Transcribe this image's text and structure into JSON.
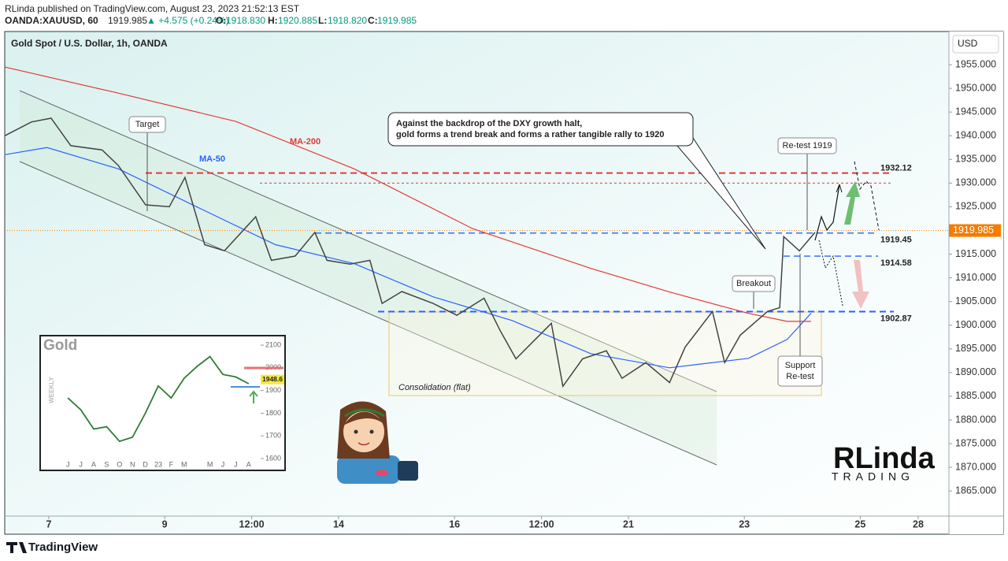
{
  "header": {
    "byline": "RLinda published on TradingView.com, August 23, 2023 21:52:13 EST",
    "symbol": "OANDA:XAUUSD, 60",
    "last": "1919.985",
    "change": "▲ +4.575 (+0.24%)",
    "ohlc": [
      [
        "O:",
        "1918.830"
      ],
      [
        "H:",
        "1920.885"
      ],
      [
        "L:",
        "1918.820"
      ],
      [
        "C:",
        "1919.985"
      ]
    ]
  },
  "footer": "TradingView",
  "logo": [
    "RLinda",
    "TRADING"
  ],
  "chart_data": [
    {
      "type": "line",
      "title": "Gold Spot / U.S. Dollar, 1h, OANDA",
      "currency": "USD",
      "xlim": [
        -0.76,
        15.53
      ],
      "ylim": [
        1859.7,
        1962
      ],
      "xticks": [
        {
          "value": 0,
          "label": "7"
        },
        {
          "value": 2,
          "label": "9"
        },
        {
          "value": 3.5,
          "label": "12:00"
        },
        {
          "value": 5,
          "label": "14"
        },
        {
          "value": 7,
          "label": "16"
        },
        {
          "value": 8.5,
          "label": "12:00"
        },
        {
          "value": 10,
          "label": "21"
        },
        {
          "value": 12,
          "label": "23"
        },
        {
          "value": 14,
          "label": "25"
        },
        {
          "value": 15,
          "label": "28"
        }
      ],
      "yticks": [
        {
          "value": 1865,
          "label": "1865.000"
        },
        {
          "value": 1870,
          "label": "1870.000"
        },
        {
          "value": 1875,
          "label": "1875.000"
        },
        {
          "value": 1880,
          "label": "1880.000"
        },
        {
          "value": 1885,
          "label": "1885.000"
        },
        {
          "value": 1890,
          "label": "1890.000"
        },
        {
          "value": 1895,
          "label": "1895.000"
        },
        {
          "value": 1900,
          "label": "1900.000"
        },
        {
          "value": 1905,
          "label": "1905.000"
        },
        {
          "value": 1910,
          "label": "1910.000"
        },
        {
          "value": 1915,
          "label": "1915.000"
        },
        {
          "value": 1920,
          "label": "1920.000"
        },
        {
          "value": 1925,
          "label": "1925.000"
        },
        {
          "value": 1930,
          "label": "1930.000"
        },
        {
          "value": 1935,
          "label": "1935.000"
        },
        {
          "value": 1940,
          "label": "1940.000"
        },
        {
          "value": 1945,
          "label": "1945.000"
        },
        {
          "value": 1950,
          "label": "1950.000"
        },
        {
          "value": 1955,
          "label": "1955.000"
        }
      ],
      "price": {
        "color": "#444444",
        "x": [
          -0.76,
          -0.3,
          0.04,
          0.38,
          0.92,
          1.2,
          1.67,
          2.08,
          2.35,
          2.69,
          3.03,
          3.57,
          3.84,
          4.25,
          4.59,
          4.8,
          5.2,
          5.54,
          5.75,
          6.09,
          6.63,
          7.04,
          7.51,
          7.79,
          8.06,
          8.67,
          8.87,
          9.21,
          9.62,
          9.89,
          10.3,
          10.71,
          10.98,
          11.45,
          11.66,
          11.93,
          12.4,
          12.61,
          12.68,
          12.95,
          13.22
        ],
        "values": [
          1940,
          1942.9,
          1943.7,
          1937.9,
          1937,
          1933.7,
          1925.4,
          1925,
          1931.2,
          1917,
          1915.7,
          1922.9,
          1913.7,
          1914.6,
          1919.6,
          1913.7,
          1912.9,
          1913.7,
          1904.6,
          1907.1,
          1904.6,
          1902.1,
          1905.7,
          1898.8,
          1892.9,
          1900.4,
          1887.1,
          1892.9,
          1894.6,
          1888.8,
          1892.1,
          1887.9,
          1895.4,
          1902.9,
          1892.1,
          1897.9,
          1902.9,
          1903.7,
          1918.7,
          1915.7,
          1919.6
        ]
      },
      "moving_averages": [
        {
          "name": "MA-50",
          "color": "#2962ff",
          "x": [
            -0.76,
            -0.03,
            1.2,
            2.55,
            3.91,
            5.27,
            6.63,
            7.99,
            9.35,
            10.71,
            12.07,
            12.74,
            13.15
          ],
          "values": [
            1936,
            1937.5,
            1933,
            1925,
            1917,
            1913,
            1906,
            1901,
            1894,
            1891,
            1893,
            1897,
            1902.5
          ]
        },
        {
          "name": "MA-200",
          "color": "#e53935",
          "x": [
            -0.76,
            1.2,
            3.23,
            5.27,
            7.31,
            9.35,
            10.71,
            12.07,
            12.74,
            13.15
          ],
          "values": [
            1954.5,
            1949,
            1943,
            1933,
            1920.4,
            1912,
            1907,
            1902.5,
            1900.8,
            1900.8
          ]
        }
      ],
      "levels": [
        {
          "value": 1932.12,
          "color": "#e53935"
        },
        {
          "value": 1919.45,
          "color": "#2962ff"
        },
        {
          "value": 1914.58,
          "color": "#2962ff"
        },
        {
          "value": 1902.87,
          "color": "#2962ff"
        }
      ],
      "unlabeled_levels": [
        1930
      ],
      "last_price": 1919.985,
      "last_color": "#f57c00",
      "annotations": {
        "target": "Target",
        "retest": "Re-test 1919",
        "breakout": "Breakout",
        "support": [
          "Support",
          "Re-test"
        ],
        "consolidation": "Consolidation (flat)",
        "callout": [
          "Against the backdrop of the DXY growth halt,",
          "gold forms a trend break and forms a rather tangible rally to 1920"
        ]
      }
    },
    {
      "type": "line",
      "title": "Gold",
      "period": "WEEKLY",
      "categories": [
        "J",
        "J",
        "A",
        "S",
        "O",
        "N",
        "D",
        "23",
        "F",
        "M",
        null,
        "M",
        "J",
        "J",
        "A"
      ],
      "values": [
        1867,
        1815,
        1730,
        1740,
        1676,
        1694,
        1800,
        1920,
        1867,
        1954,
        2006,
        2050,
        1971,
        1960,
        1930
      ],
      "color": "#2e7d32",
      "ylim": [
        1565,
        2135
      ],
      "yticks": [
        1600,
        1700,
        1800,
        1900,
        2000,
        2100
      ],
      "last_price": 1948.6
    }
  ]
}
